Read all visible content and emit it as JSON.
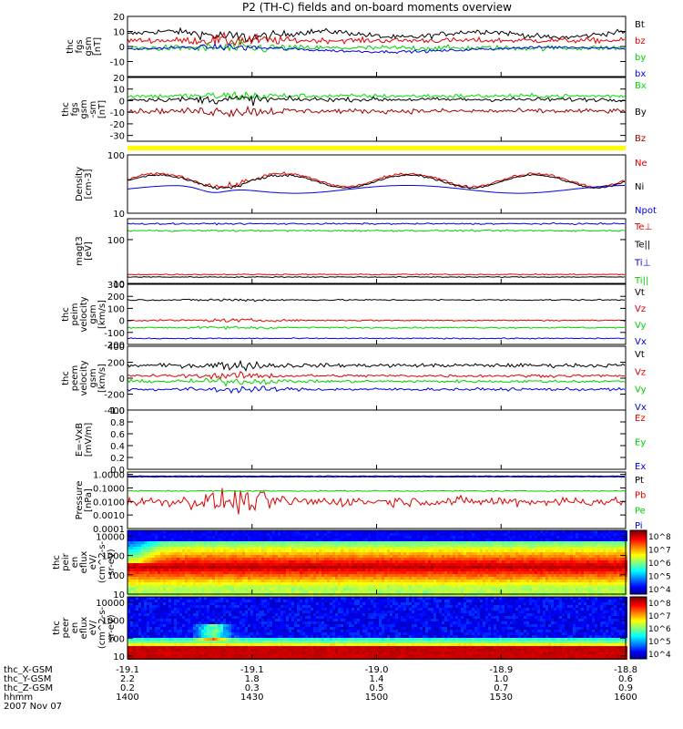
{
  "title": "P2 (TH-C) fields and on-board moments overview",
  "colors": {
    "black": "#000000",
    "red": "#e00000",
    "green": "#00d000",
    "blue": "#0000e0",
    "darkred": "#a00000",
    "bright_green": "#00e000",
    "yellow": "#ffff00"
  },
  "footer": {
    "rows": [
      {
        "label": "thc_X-GSM",
        "values": [
          "-19.1",
          "-19.1",
          "-19.0",
          "-18.9",
          "-18.8"
        ]
      },
      {
        "label": "thc_Y-GSM",
        "values": [
          "2.2",
          "1.8",
          "1.4",
          "1.0",
          "0.6"
        ]
      },
      {
        "label": "thc_Z-GSM",
        "values": [
          "0.2",
          "0.3",
          "0.5",
          "0.7",
          "0.9"
        ]
      },
      {
        "label": "hhmm",
        "values": [
          "1400",
          "1430",
          "1500",
          "1530",
          "1600"
        ]
      }
    ],
    "date": "2007 Nov 07"
  },
  "chart_data": [
    {
      "type": "line",
      "id": "fgs",
      "ylabel": [
        "thc",
        "fgs",
        "gsm",
        "[nT]"
      ],
      "ylim": [
        -20,
        20
      ],
      "yticks": [
        {
          "v": 20,
          "t": "20"
        },
        {
          "v": 10,
          "t": "10"
        },
        {
          "v": 0,
          "t": "0"
        },
        {
          "v": -10,
          "t": "-10"
        }
      ],
      "series": [
        {
          "name": "Bt",
          "color": "#000000"
        },
        {
          "name": "bz",
          "color": "#e00000"
        },
        {
          "name": "by",
          "color": "#00d000"
        },
        {
          "name": "bx",
          "color": "#0000e0"
        }
      ],
      "legend": [
        "Bt",
        "bz",
        "by",
        "bx"
      ]
    },
    {
      "type": "line",
      "id": "fgs_sm",
      "ylabel": [
        "thc",
        "fgs",
        "gsm",
        "-sm",
        "[nT]"
      ],
      "ylim": [
        -35,
        20
      ],
      "yticks": [
        {
          "v": 20,
          "t": "20"
        },
        {
          "v": 10,
          "t": "10"
        },
        {
          "v": 0,
          "t": "0"
        },
        {
          "v": -10,
          "t": "-10"
        },
        {
          "v": -20,
          "t": "-20"
        },
        {
          "v": -30,
          "t": "-30"
        }
      ],
      "series": [
        {
          "name": "Bx",
          "color": "#00e000"
        },
        {
          "name": "By",
          "color": "#000000"
        },
        {
          "name": "Bz",
          "color": "#a00000"
        }
      ],
      "legend": [
        "Bx",
        "By",
        "Bz"
      ]
    },
    {
      "type": "bar",
      "id": "state_bar",
      "color": "#ffff00"
    },
    {
      "type": "line",
      "id": "density",
      "ylabel": [
        "Density",
        "[cm-3]"
      ],
      "yscale": "log",
      "ylim": [
        10,
        100
      ],
      "yticks": [
        {
          "v": 100,
          "t": "100"
        },
        {
          "v": 10,
          "t": "10"
        }
      ],
      "series": [
        {
          "name": "Ne",
          "color": "#e00000"
        },
        {
          "name": "Ni",
          "color": "#000000"
        },
        {
          "name": "Npot",
          "color": "#0000e0"
        }
      ],
      "legend": [
        "Ne",
        "Ni",
        "Npot"
      ]
    },
    {
      "type": "line",
      "id": "temp",
      "ylabel": [
        "magt3",
        "[eV]"
      ],
      "yscale": "log",
      "ylim": [
        10,
        300
      ],
      "yticks": [
        {
          "v": 100,
          "t": "100"
        },
        {
          "v": 10,
          "t": "10"
        }
      ],
      "series": [
        {
          "name": "Te⊥",
          "color": "#e00000"
        },
        {
          "name": "Te||",
          "color": "#000000"
        },
        {
          "name": "Ti⊥",
          "color": "#0000e0"
        },
        {
          "name": "Ti||",
          "color": "#00d000"
        }
      ],
      "legend": [
        "Te⊥",
        "Te||",
        "Ti⊥",
        "Ti||"
      ]
    },
    {
      "type": "line",
      "id": "peim",
      "ylabel": [
        "thc",
        "peim",
        "velocity",
        "gsm",
        "[km/s]"
      ],
      "ylim": [
        -200,
        300
      ],
      "yticks": [
        {
          "v": 300,
          "t": "300"
        },
        {
          "v": 200,
          "t": "200"
        },
        {
          "v": 100,
          "t": "100"
        },
        {
          "v": 0,
          "t": "0"
        },
        {
          "v": -100,
          "t": "-100"
        },
        {
          "v": -200,
          "t": "-200"
        }
      ],
      "series": [
        {
          "name": "Vt",
          "color": "#000000"
        },
        {
          "name": "Vz",
          "color": "#e00000"
        },
        {
          "name": "Vy",
          "color": "#00d000"
        },
        {
          "name": "Vx",
          "color": "#0000e0"
        }
      ],
      "legend": [
        "Vt",
        "Vz",
        "Vy",
        "Vx"
      ]
    },
    {
      "type": "line",
      "id": "peem",
      "ylabel": [
        "thc",
        "peem",
        "velocity",
        "gsm",
        "[km/s]"
      ],
      "ylim": [
        -400,
        400
      ],
      "yticks": [
        {
          "v": 400,
          "t": "400"
        },
        {
          "v": 200,
          "t": "200"
        },
        {
          "v": 0,
          "t": "0"
        },
        {
          "v": -200,
          "t": "-200"
        },
        {
          "v": -400,
          "t": "-400"
        }
      ],
      "series": [
        {
          "name": "Vt",
          "color": "#000000"
        },
        {
          "name": "Vz",
          "color": "#e00000"
        },
        {
          "name": "Vy",
          "color": "#00d000"
        },
        {
          "name": "Vx",
          "color": "#0000e0"
        }
      ],
      "legend": [
        "Vt",
        "Vz",
        "Vy",
        "Vx"
      ]
    },
    {
      "type": "line",
      "id": "efield",
      "ylabel": [
        "E=-VxB",
        "[mV/m]"
      ],
      "ylim": [
        0,
        1
      ],
      "yticks": [
        {
          "v": 1.0,
          "t": "1.0"
        },
        {
          "v": 0.8,
          "t": "0.8"
        },
        {
          "v": 0.6,
          "t": "0.6"
        },
        {
          "v": 0.4,
          "t": "0.4"
        },
        {
          "v": 0.2,
          "t": "0.2"
        },
        {
          "v": 0.0,
          "t": "0.0"
        }
      ],
      "series": [
        {
          "name": "Ez",
          "color": "#e00000"
        },
        {
          "name": "Ey",
          "color": "#00d000"
        },
        {
          "name": "Ex",
          "color": "#0000e0"
        }
      ],
      "legend": [
        "Ez",
        "Ey",
        "Ex"
      ]
    },
    {
      "type": "line",
      "id": "pressure",
      "ylabel": [
        "Pressure",
        "[nPa]"
      ],
      "yscale": "log",
      "ylim": [
        0.0001,
        1.5
      ],
      "yticks": [
        {
          "v": 1,
          "t": "1.0000"
        },
        {
          "v": 0.1,
          "t": "0.1000"
        },
        {
          "v": 0.01,
          "t": "0.0100"
        },
        {
          "v": 0.001,
          "t": "0.0010"
        },
        {
          "v": 0.0001,
          "t": "0.0001"
        }
      ],
      "series": [
        {
          "name": "Pt",
          "color": "#000000"
        },
        {
          "name": "Pb",
          "color": "#e00000"
        },
        {
          "name": "Pe",
          "color": "#00d000"
        },
        {
          "name": "Pi",
          "color": "#0000e0"
        }
      ],
      "legend": [
        "Pt",
        "Pb",
        "Pe",
        "Pi"
      ]
    },
    {
      "type": "heatmap",
      "id": "peir",
      "ylabel": [
        "thc",
        "peir",
        "en",
        "eflux",
        "eV/",
        "(cm^2-s-",
        "sr-eV)"
      ],
      "yscale": "log",
      "ylim": [
        10,
        20000
      ],
      "yticks": [
        {
          "v": 10000,
          "t": "10000"
        },
        {
          "v": 1000,
          "t": "1000"
        },
        {
          "v": 100,
          "t": "100"
        },
        {
          "v": 10,
          "t": "10"
        }
      ],
      "colorbar": [
        "10^8",
        "10^7",
        "10^6",
        "10^5",
        "10^4"
      ]
    },
    {
      "type": "heatmap",
      "id": "peer",
      "ylabel": [
        "thc",
        "peer",
        "en",
        "eflux",
        "eV/",
        "(cm^2-s-",
        "sr-eV)"
      ],
      "yscale": "log",
      "ylim": [
        7,
        20000
      ],
      "yticks": [
        {
          "v": 10000,
          "t": "10000"
        },
        {
          "v": 1000,
          "t": "1000"
        },
        {
          "v": 100,
          "t": "100"
        },
        {
          "v": 10,
          "t": "10"
        }
      ],
      "colorbar": [
        "10^8",
        "10^7",
        "10^6",
        "10^5",
        "10^4"
      ]
    }
  ]
}
